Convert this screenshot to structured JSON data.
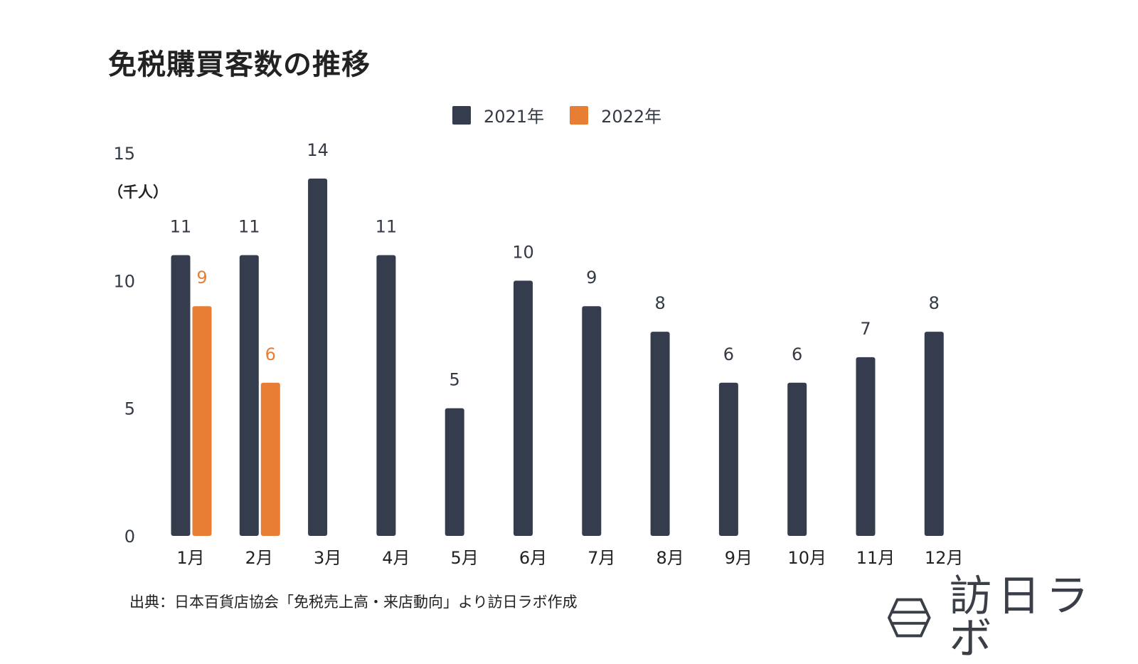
{
  "colors": {
    "s2021": "#343c4e",
    "s2022": "#e87e33",
    "text": "#333a45"
  },
  "chart_data": {
    "type": "bar",
    "title": "免税購買客数の推移",
    "unit_label": "（千人）",
    "categories": [
      "1月",
      "2月",
      "3月",
      "4月",
      "5月",
      "6月",
      "7月",
      "8月",
      "9月",
      "10月",
      "11月",
      "12月"
    ],
    "series": [
      {
        "name": "2021年",
        "values": [
          11,
          11,
          14,
          11,
          5,
          10,
          9,
          8,
          6,
          6,
          7,
          8
        ]
      },
      {
        "name": "2022年",
        "values": [
          9,
          6,
          null,
          null,
          null,
          null,
          null,
          null,
          null,
          null,
          null,
          null
        ]
      }
    ],
    "y_ticks": [
      0,
      5,
      10,
      15
    ],
    "ylim": [
      0,
      15
    ],
    "grid": false,
    "legend_position": "top-center"
  },
  "footer": {
    "source": "出典：日本百貨店協会「免税売上高・来店動向」より訪日ラボ作成",
    "logo_text": "訪日ラボ"
  }
}
